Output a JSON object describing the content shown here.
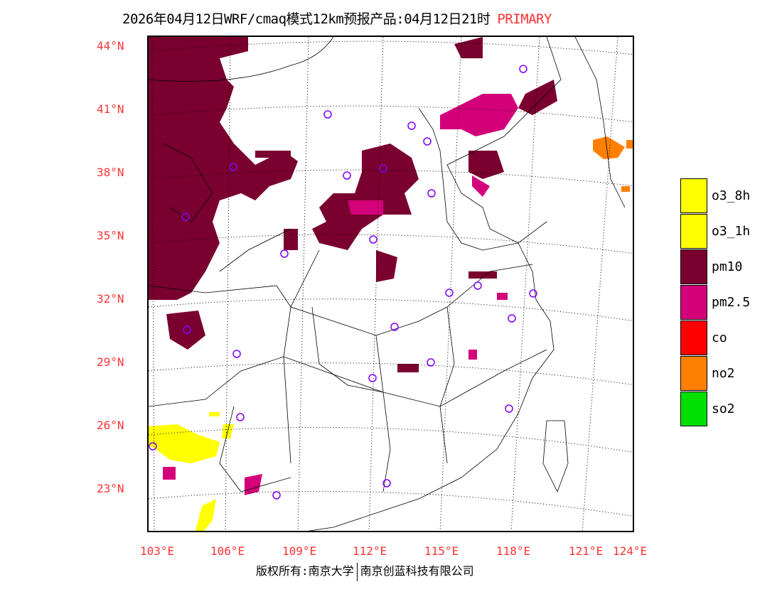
{
  "title": {
    "text": "2026年04月12日WRF/cmaq模式12km预报产品:04月12日21时",
    "highlight": "PRIMARY"
  },
  "lat_labels": [
    "44°N",
    "41°N",
    "38°N",
    "35°N",
    "32°N",
    "29°N",
    "26°N",
    "23°N"
  ],
  "lon_labels": [
    "103°E",
    "106°E",
    "109°E",
    "112°E",
    "115°E",
    "118°E",
    "121°E",
    "124°E"
  ],
  "legend": [
    {
      "label": "o3_8h",
      "color": "#ffff00"
    },
    {
      "label": "o3_1h",
      "color": "#ffff00"
    },
    {
      "label": "pm10",
      "color": "#7a0030"
    },
    {
      "label": "pm2.5",
      "color": "#d4007a"
    },
    {
      "label": "co",
      "color": "#ff0000"
    },
    {
      "label": "no2",
      "color": "#ff8000"
    },
    {
      "label": "so2",
      "color": "#00e000"
    }
  ],
  "copyright": {
    "left": "版权所有:南京大学",
    "right": "南京创蓝科技有限公司"
  }
}
